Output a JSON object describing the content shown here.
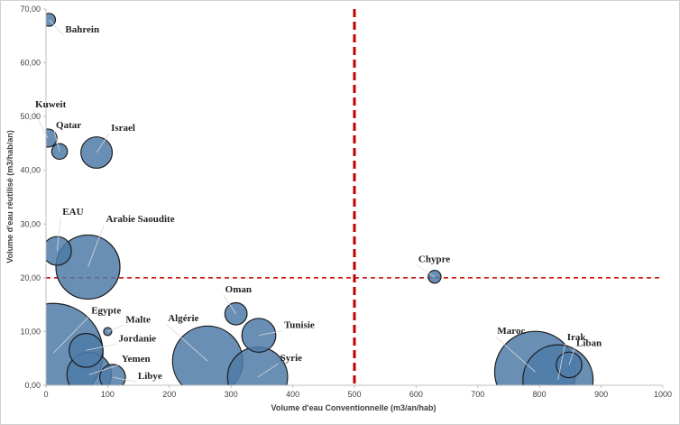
{
  "chart_data": {
    "type": "bubble",
    "title": "",
    "xlabel": "Volume d'eau Conventionnelle (m3/an/hab)",
    "ylabel": "Volume d'eau réutilisé (m3/hab/an)",
    "xlim": [
      0,
      1000
    ],
    "ylim": [
      0,
      70
    ],
    "x_ticks": [
      "0",
      "100",
      "200",
      "300",
      "400",
      "500",
      "600",
      "700",
      "800",
      "900",
      "1000"
    ],
    "y_ticks": [
      "0,00",
      "10,00",
      "20,00",
      "30,00",
      "40,00",
      "50,00",
      "60,00",
      "70,00"
    ],
    "grid": false,
    "reference_lines": {
      "x": 500,
      "y": 20
    },
    "colors": {
      "bubble_fill": "#4f7ba8",
      "bubble_stroke": "#1c1c1c",
      "reference_line": "#c00000"
    },
    "points": [
      {
        "label": "Bahrein",
        "x": 5,
        "y": 68,
        "size": 1
      },
      {
        "label": "Kuweit",
        "x": 3,
        "y": 46,
        "size": 2
      },
      {
        "label": "Qatar",
        "x": 22,
        "y": 43.5,
        "size": 1.5
      },
      {
        "label": "Israel",
        "x": 82,
        "y": 43.3,
        "size": 6
      },
      {
        "label": "EAU",
        "x": 18,
        "y": 25,
        "size": 5
      },
      {
        "label": "Arabie Saoudite",
        "x": 68,
        "y": 22,
        "size": 25
      },
      {
        "label": "Chypre",
        "x": 630,
        "y": 20.2,
        "size": 1
      },
      {
        "label": "Oman",
        "x": 308,
        "y": 13.3,
        "size": 3
      },
      {
        "label": "Tunisie",
        "x": 345,
        "y": 9.3,
        "size": 7
      },
      {
        "label": "Egypte",
        "x": 12,
        "y": 6,
        "size": 60
      },
      {
        "label": "Malte",
        "x": 100,
        "y": 10,
        "size": 0.4
      },
      {
        "label": "Jordanie",
        "x": 65,
        "y": 6.5,
        "size": 7
      },
      {
        "label": "Yemen",
        "x": 70,
        "y": 2,
        "size": 12
      },
      {
        "label": "Libye",
        "x": 108,
        "y": 1.5,
        "size": 4
      },
      {
        "label": "Algérie",
        "x": 262,
        "y": 4.5,
        "size": 30
      },
      {
        "label": "Syrie",
        "x": 343,
        "y": 1.5,
        "size": 22
      },
      {
        "label": "Maroc",
        "x": 793,
        "y": 2.5,
        "size": 40
      },
      {
        "label": "Irak",
        "x": 830,
        "y": 1,
        "size": 30
      },
      {
        "label": "Liban",
        "x": 848,
        "y": 3.8,
        "size": 4
      }
    ]
  }
}
